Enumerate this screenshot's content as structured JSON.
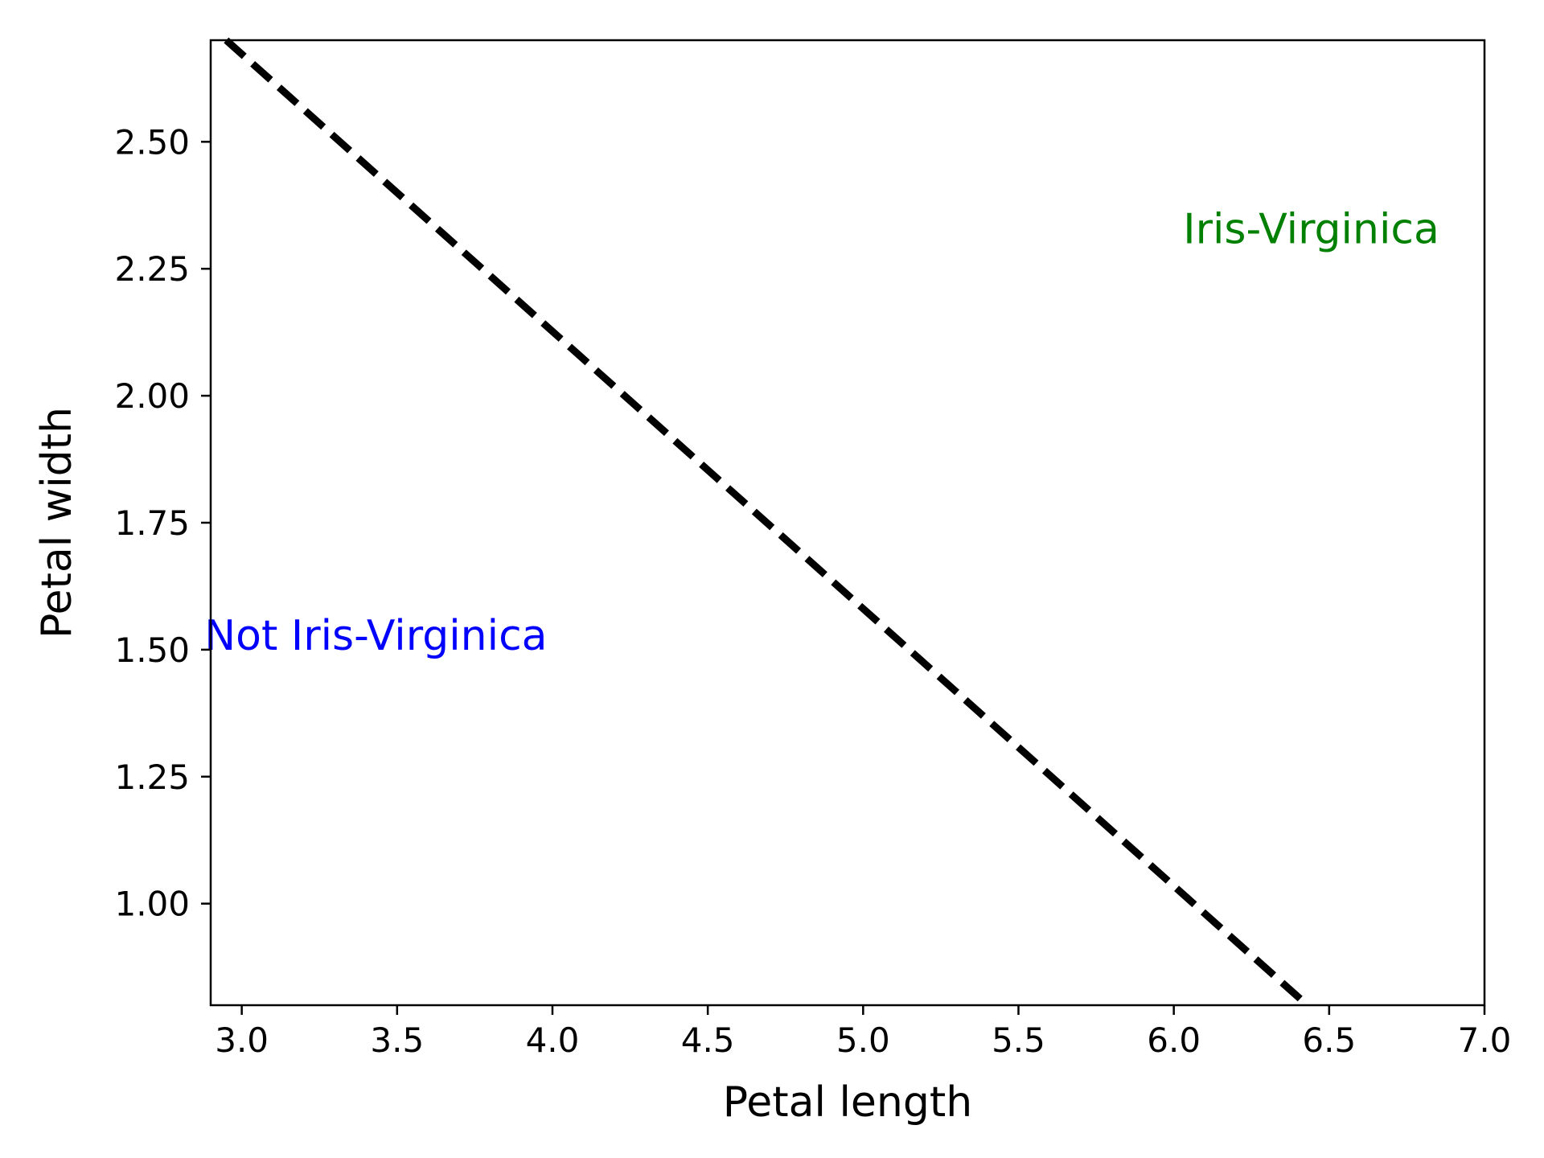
{
  "chart_data": {
    "type": "line",
    "title": "",
    "xlabel": "Petal length",
    "ylabel": "Petal width",
    "xlim": [
      2.9,
      7.0
    ],
    "ylim": [
      0.8,
      2.7
    ],
    "x_ticks": [
      3.0,
      3.5,
      4.0,
      4.5,
      5.0,
      5.5,
      6.0,
      6.5,
      7.0
    ],
    "x_tick_labels": [
      "3.0",
      "3.5",
      "4.0",
      "4.5",
      "5.0",
      "5.5",
      "6.0",
      "6.5",
      "7.0"
    ],
    "y_ticks": [
      1.0,
      1.25,
      1.5,
      1.75,
      2.0,
      2.25,
      2.5
    ],
    "y_tick_labels": [
      "1.00",
      "1.25",
      "1.50",
      "1.75",
      "2.00",
      "2.25",
      "2.50"
    ],
    "grid": false,
    "series": [
      {
        "style": "dashed",
        "color": "#000000",
        "x": [
          2.95,
          6.43
        ],
        "y": [
          2.7,
          0.8
        ]
      }
    ],
    "annotations": [
      {
        "text": "Iris-Virginica",
        "x": 6.03,
        "y": 2.3,
        "color": "#008000"
      },
      {
        "text": "Not Iris-Virginica",
        "x": 2.88,
        "y": 1.5,
        "color": "#0000ff"
      }
    ]
  }
}
